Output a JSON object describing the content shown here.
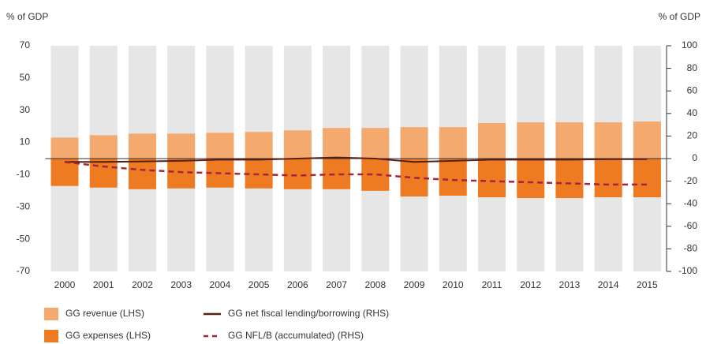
{
  "chart_data": {
    "type": "bar",
    "y_label": "% of GDP",
    "y2_label": "% of GDP",
    "categories": [
      "2000",
      "2001",
      "2002",
      "2003",
      "2004",
      "2005",
      "2006",
      "2007",
      "2008",
      "2009",
      "2010",
      "2011",
      "2012",
      "2013",
      "2014",
      "2015"
    ],
    "series": [
      {
        "name": "GG revenue (LHS)",
        "type": "bar",
        "color": "#f4a96e",
        "values": [
          13,
          14.5,
          15.5,
          15.5,
          16,
          16.5,
          17.5,
          19,
          19,
          19.5,
          19.5,
          22,
          22.5,
          22.5,
          22.5,
          23
        ]
      },
      {
        "name": "GG expenses (LHS)",
        "type": "bar",
        "color": "#ee7b22",
        "values": [
          -17,
          -18,
          -19,
          -18.5,
          -18,
          -18.5,
          -19,
          -19,
          -20,
          -23.5,
          -23,
          -24,
          -24.5,
          -24.5,
          -24,
          -24
        ]
      },
      {
        "name": "GG net fiscal lending/borrowing (RHS)",
        "type": "line",
        "axis": "y2",
        "color": "#5a1f14",
        "values": [
          -3,
          -3,
          -2.5,
          -2,
          -1,
          -1,
          0,
          1,
          0,
          -3,
          -2,
          -1,
          -1,
          -1,
          -0.5,
          -0.5
        ]
      },
      {
        "name": "GG NFL/B (accumulated) (RHS)",
        "type": "line",
        "dashed": true,
        "axis": "y2",
        "color": "#a3263a",
        "values": [
          -3,
          -7,
          -10,
          -12,
          -13,
          -14,
          -15,
          -14,
          -14,
          -17,
          -19,
          -20,
          -21,
          -22,
          -23,
          -23
        ]
      }
    ],
    "ylim": [
      -70,
      70
    ],
    "yticks": [
      -70,
      -50,
      -30,
      -10,
      10,
      30,
      50,
      70
    ],
    "y2lim": [
      -100,
      100
    ],
    "y2ticks": [
      -100,
      -80,
      -60,
      -40,
      -20,
      0,
      20,
      40,
      60,
      80,
      100
    ]
  }
}
